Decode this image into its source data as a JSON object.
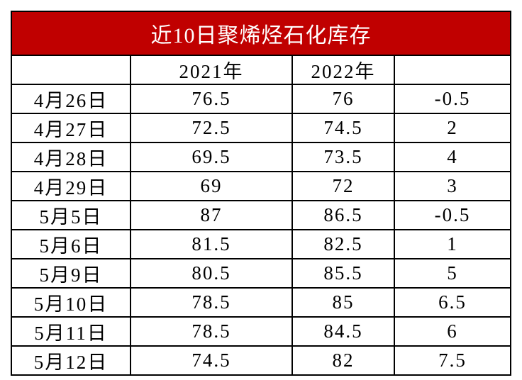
{
  "title": "近10日聚烯烃石化库存",
  "table": {
    "header": [
      "2021年",
      "2022年"
    ],
    "rows": [
      [
        "4月26日",
        "76.5",
        "76",
        "-0.5"
      ],
      [
        "4月27日",
        "72.5",
        "74.5",
        "2"
      ],
      [
        "4月28日",
        "69.5",
        "73.5",
        "4"
      ],
      [
        "4月29日",
        "69",
        "72",
        "3"
      ],
      [
        "5月5日",
        "87",
        "86.5",
        "-0.5"
      ],
      [
        "5月6日",
        "81.5",
        "82.5",
        "1"
      ],
      [
        "5月9日",
        "80.5",
        "85.5",
        "5"
      ],
      [
        "5月10日",
        "78.5",
        "85",
        "6.5"
      ],
      [
        "5月11日",
        "78.5",
        "84.5",
        "6"
      ],
      [
        "5月12日",
        "74.5",
        "82",
        "7.5"
      ]
    ]
  }
}
